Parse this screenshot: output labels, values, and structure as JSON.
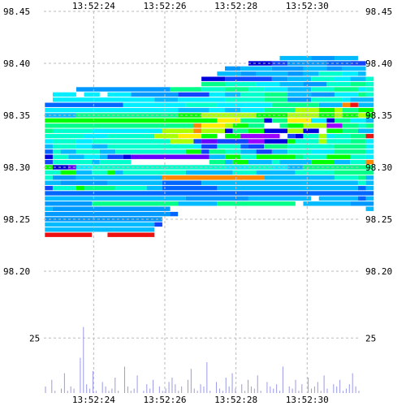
{
  "palette": {
    "grid": "#bbbbbb",
    "volume_bar": "#9a9ae6",
    "cell_colors": {
      "r": "#ee1111",
      "o": "#ff8800",
      "y": "#ffee00",
      "l": "#aaff00",
      "g": "#00ff00",
      "m": "#00ff88",
      "q": "#00ffcc",
      "c": "#00eeff",
      "s": "#00bbff",
      "t": "#0099ff",
      "b": "#0066ff",
      "d": "#1144ff",
      "n": "#0000dd",
      "v": "#6600ff",
      "p": "#9900ff"
    }
  },
  "chart_data": [
    {
      "type": "heatmap",
      "title": "",
      "x_axis": {
        "range": [
          "13:52:22.6",
          "13:52:31.5"
        ],
        "tick_labels": [
          "13:52:24",
          "13:52:26",
          "13:52:28",
          "13:52:30"
        ],
        "tick_values": [
          24,
          26,
          28,
          30
        ],
        "labels_top": true,
        "labels_bottom": true
      },
      "y_axis": {
        "range": [
          98.15,
          98.45
        ],
        "tick_labels": [
          "98.45",
          "98.40",
          "98.35",
          "98.30",
          "98.25",
          "98.20"
        ],
        "tick_values": [
          98.45,
          98.4,
          98.35,
          98.3,
          98.25,
          98.2
        ],
        "labels_left": true,
        "labels_right": true
      },
      "grid": true,
      "price_step": 0.005,
      "time_step_seconds": 0.22,
      "levels": [
        {
          "price": 98.405,
          "cells": "..............................sssstttsss.."
        },
        {
          "price": 98.4,
          "cells": "..........................nnnddtttttbbbdd."
        },
        {
          "price": 98.395,
          "cells": ".......................ttssssttttsssttsss."
        },
        {
          "price": 98.39,
          "cells": "......................sssttssssttssqqqccs."
        },
        {
          "price": 98.385,
          "cells": "....................nnnddddddttsssqqqccssq"
        },
        {
          "price": 98.38,
          "cells": "....................mmmqqqqcccssstttqqqmmq"
        },
        {
          "price": 98.375,
          "cells": "....ttttttttttttmmmmqqqmmmqqcccsssqqqmmmcq"
        },
        {
          "price": 98.37,
          "cells": ".ccc.cc.cccttttttddddccssqqqmmmssstttcccmq"
        },
        {
          "price": 98.365,
          "cells": ".cccccccccccccsssccccccqqqqqmmmtttqqqqcsss"
        },
        {
          "price": 98.36,
          "cells": "bbbbbbbbbbccccccccqqqqcccccccmmmmmmsssorss"
        },
        {
          "price": 98.355,
          "cells": "cccccccccccccccccssssccsscccmmmmlllgglmmgg"
        },
        {
          "price": 98.35,
          "cells": "ssssmmmmmmmmmmmmmggglllllllggggllllgglgglg"
        },
        {
          "price": 98.345,
          "cells": "ggggggggggggggggggggggyyymmmnmmyyyccnmmccs"
        },
        {
          "price": 98.34,
          "cells": "mmmmmmmmmmmmmmmmmmmoyyylggmm..mgglllppmmqm"
        },
        {
          "price": 98.335,
          "cells": "mqqqqqcccccccccllllolllnmmggnnnllnn.ggmmss"
        },
        {
          "price": 98.33,
          "cells": "qqqqqcccqqqqqqlllyyygg.ggppppp.dnqqlcqqmmr"
        },
        {
          "price": 98.325,
          "cells": "cqqqccqqqqqqqqqqllldvvddddppnnngqqqlqqqmmc"
        },
        {
          "price": 98.32,
          "cells": "sqqqccssqqqqqqqqqqqcddqqqbddmmmqqqqqqmmmmc"
        },
        {
          "price": 98.315,
          "cells": "bqssqqqssqqqqqqqqqggdmmqqssddssqqqcccmmmmc"
        },
        {
          "price": 98.31,
          "cells": "nqqssccsddnvvvvvvvvvvssggqqgggggmqqqgggqqc"
        },
        {
          "price": 98.305,
          "cells": "dqqqqqsqqqq..........mmsggsssqssssgggssqqo"
        },
        {
          "price": 98.3,
          "cells": "gnnvccqqqqqqqqqqqqqqqqqcccqqqccssmmmmmmmmm"
        },
        {
          "price": 98.295,
          "cells": "qqggssqqgsqqqqqqqqssssssqqqsssssqqqqqmmmmm"
        },
        {
          "price": 98.29,
          "cells": "qtttsssssssssssooooooooooooosssssssssqqqms"
        },
        {
          "price": 98.285,
          "cells": "ssttttttsssssssbbbbbssssssssssssssssssssqs"
        },
        {
          "price": 98.28,
          "cells": "dqqqgmmmmqqqqssbbbbbbbssssssssssssssssssbs"
        },
        {
          "price": 98.275,
          "cells": "bbbbbbbbbbbbbbbbbbbbbbbbbbbbbbbbbbbbbbbbbb"
        },
        {
          "price": 98.27,
          "cells": "ssssssssssssssssssttttttttssssssss.sssssbs"
        },
        {
          "price": 98.265,
          "cells": "ttttttmmmmmmmmmmmsssssmmmmmmmmmm.ssssssttt"
        },
        {
          "price": 98.26,
          "cells": "sttttttttttttttt.........................s"
        },
        {
          "price": 98.255,
          "cells": "ttttttttttttttttb........................."
        },
        {
          "price": 98.25,
          "cells": "ttttttttttttttt..........................."
        },
        {
          "price": 98.245,
          "cells": "ssssssssssssssd..........................."
        },
        {
          "price": 98.24,
          "cells": "ssssssssssssss............................"
        },
        {
          "price": 98.235,
          "cells": "rrrrrr..rrrrrr............................"
        }
      ]
    },
    {
      "type": "bar",
      "title": "",
      "x_axis": {
        "range": [
          "13:52:22.6",
          "13:52:31.5"
        ]
      },
      "y_axis": {
        "range": [
          0,
          31
        ],
        "tick_labels": [
          "25"
        ],
        "tick_values": [
          25
        ],
        "labels_left": true,
        "labels_right": true
      },
      "grid": true,
      "values": [
        3,
        0,
        6,
        1,
        0,
        2,
        9,
        1,
        3,
        2,
        0,
        16,
        30,
        4,
        2,
        10,
        1,
        0,
        5,
        3,
        1,
        2,
        7,
        1,
        0,
        12,
        3,
        1,
        2,
        8,
        0,
        1,
        4,
        2,
        6,
        0,
        3,
        1,
        2,
        5,
        7,
        4,
        1,
        3,
        0,
        6,
        11,
        2,
        1,
        4,
        3,
        14,
        1,
        0,
        5,
        2,
        1,
        7,
        3,
        9,
        2,
        0,
        4,
        1,
        6,
        3,
        2,
        8,
        1,
        0,
        5,
        3,
        2,
        4,
        1,
        12,
        0,
        3,
        2,
        6,
        1,
        4,
        0,
        7,
        2,
        3,
        5,
        1,
        8,
        2,
        0,
        4,
        3,
        6,
        1,
        2,
        4,
        9,
        3,
        1
      ]
    }
  ]
}
